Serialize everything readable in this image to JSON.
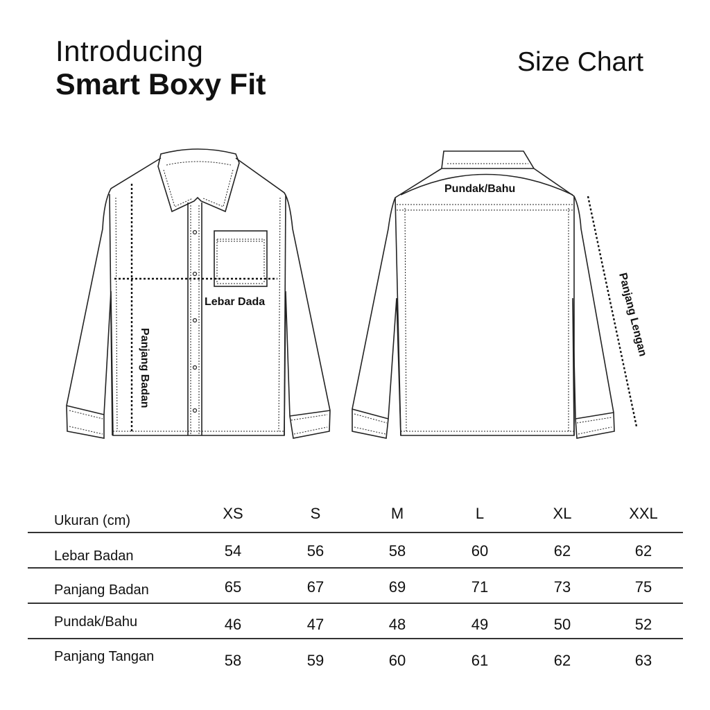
{
  "header": {
    "intro": "Introducing",
    "product": "Smart Boxy Fit",
    "chart_title": "Size Chart"
  },
  "diagram": {
    "front_labels": {
      "chest": "Lebar Dada",
      "body_length": "Panjang Badan"
    },
    "back_labels": {
      "shoulder": "Pundak/Bahu",
      "sleeve_length": "Panjang Lengan"
    }
  },
  "table": {
    "corner": "Ukuran (cm)",
    "sizes": [
      "XS",
      "S",
      "M",
      "L",
      "XL",
      "XXL"
    ],
    "rows": [
      {
        "label": "Lebar Badan",
        "values": [
          "54",
          "56",
          "58",
          "60",
          "62",
          "62"
        ]
      },
      {
        "label": "Panjang Badan",
        "values": [
          "65",
          "67",
          "69",
          "71",
          "73",
          "75"
        ]
      },
      {
        "label": "Pundak/Bahu",
        "values": [
          "46",
          "47",
          "48",
          "49",
          "50",
          "52"
        ]
      },
      {
        "label": "Panjang Tangan",
        "values": [
          "58",
          "59",
          "60",
          "61",
          "62",
          "63"
        ]
      }
    ]
  }
}
